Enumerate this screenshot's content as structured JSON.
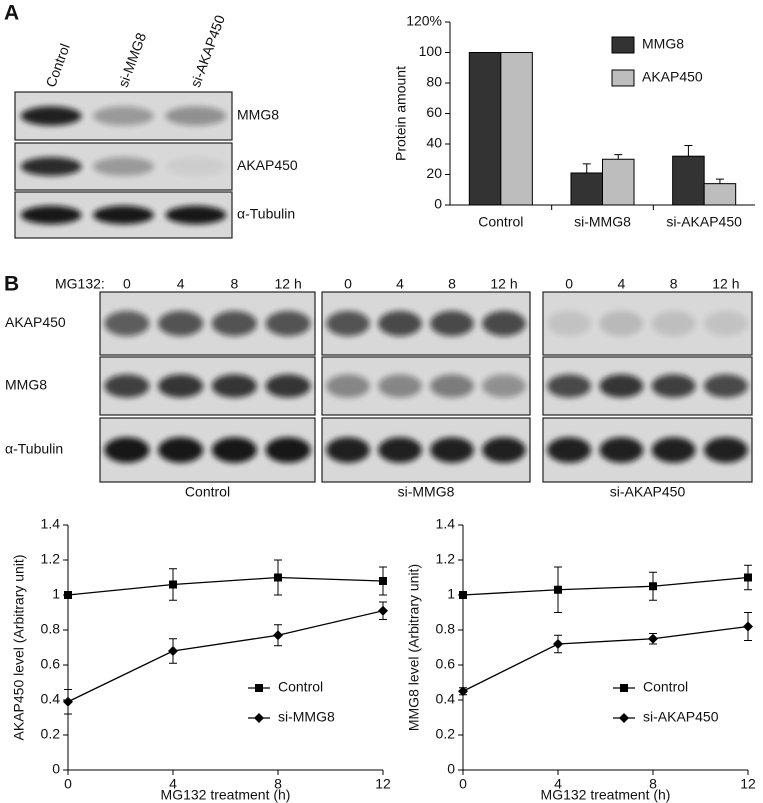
{
  "panels": {
    "a": "A",
    "b": "B"
  },
  "blot_a": {
    "lanes": [
      "Control",
      "si-MMG8",
      "si-AKAP450"
    ],
    "rows": [
      "MMG8",
      "AKAP450",
      "α-Tubulin"
    ]
  },
  "blot_b": {
    "treatment_label": "MG132:",
    "timepoints": [
      "0",
      "4",
      "8",
      "12 h"
    ],
    "rows": [
      "AKAP450",
      "MMG8",
      "α-Tubulin"
    ],
    "groups": [
      "Control",
      "si-MMG8",
      "si-AKAP450"
    ]
  },
  "chart_data": [
    {
      "type": "bar",
      "ylabel": "Protein amount",
      "categories": [
        "Control",
        "si-MMG8",
        "si-AKAP450"
      ],
      "series": [
        {
          "name": "MMG8",
          "color": "#333333",
          "values": [
            100,
            21,
            32
          ],
          "errors": [
            0,
            6,
            7
          ]
        },
        {
          "name": "AKAP450",
          "color": "#bdbdbd",
          "values": [
            100,
            30,
            14
          ],
          "errors": [
            0,
            3,
            3
          ]
        }
      ],
      "ylim": [
        0,
        120
      ],
      "yticks": [
        0,
        20,
        40,
        60,
        80,
        100,
        {
          "value": 120,
          "label": "120%"
        }
      ],
      "legend": "upper right"
    },
    {
      "type": "line",
      "xlabel": "MG132 treatment (h)",
      "ylabel": "AKAP450 level (Arbitrary unit)",
      "x": [
        0,
        4,
        8,
        12
      ],
      "series": [
        {
          "name": "Control",
          "color": "#000000",
          "marker": "square",
          "values": [
            1.0,
            1.06,
            1.1,
            1.08
          ],
          "errors": [
            0,
            0.09,
            0.1,
            0.08
          ]
        },
        {
          "name": "si-MMG8",
          "color": "#000000",
          "marker": "diamond",
          "values": [
            0.39,
            0.68,
            0.77,
            0.91
          ],
          "errors": [
            0.07,
            0.07,
            0.06,
            0.05
          ]
        }
      ],
      "xlim": [
        0,
        12
      ],
      "xticks": [
        0,
        4,
        8,
        12
      ],
      "ylim": [
        0,
        1.4
      ],
      "yticks": [
        0,
        0.2,
        0.4,
        0.6,
        0.8,
        1,
        1.2,
        1.4
      ],
      "legend": "lower right"
    },
    {
      "type": "line",
      "xlabel": "MG132 treatment (h)",
      "ylabel": "MMG8 level (Arbitrary unit)",
      "x": [
        0,
        4,
        8,
        12
      ],
      "series": [
        {
          "name": "Control",
          "color": "#000000",
          "marker": "square",
          "values": [
            1.0,
            1.03,
            1.05,
            1.1
          ],
          "errors": [
            0,
            0.13,
            0.08,
            0.07
          ]
        },
        {
          "name": "si-AKAP450",
          "color": "#000000",
          "marker": "diamond",
          "values": [
            0.45,
            0.72,
            0.75,
            0.82
          ],
          "errors": [
            0.02,
            0.05,
            0.03,
            0.08
          ]
        }
      ],
      "xlim": [
        0,
        12
      ],
      "xticks": [
        0,
        4,
        8,
        12
      ],
      "ylim": [
        0,
        1.4
      ],
      "yticks": [
        0,
        0.2,
        0.4,
        0.6,
        0.8,
        1,
        1.2,
        1.4
      ],
      "legend": "lower right"
    }
  ]
}
